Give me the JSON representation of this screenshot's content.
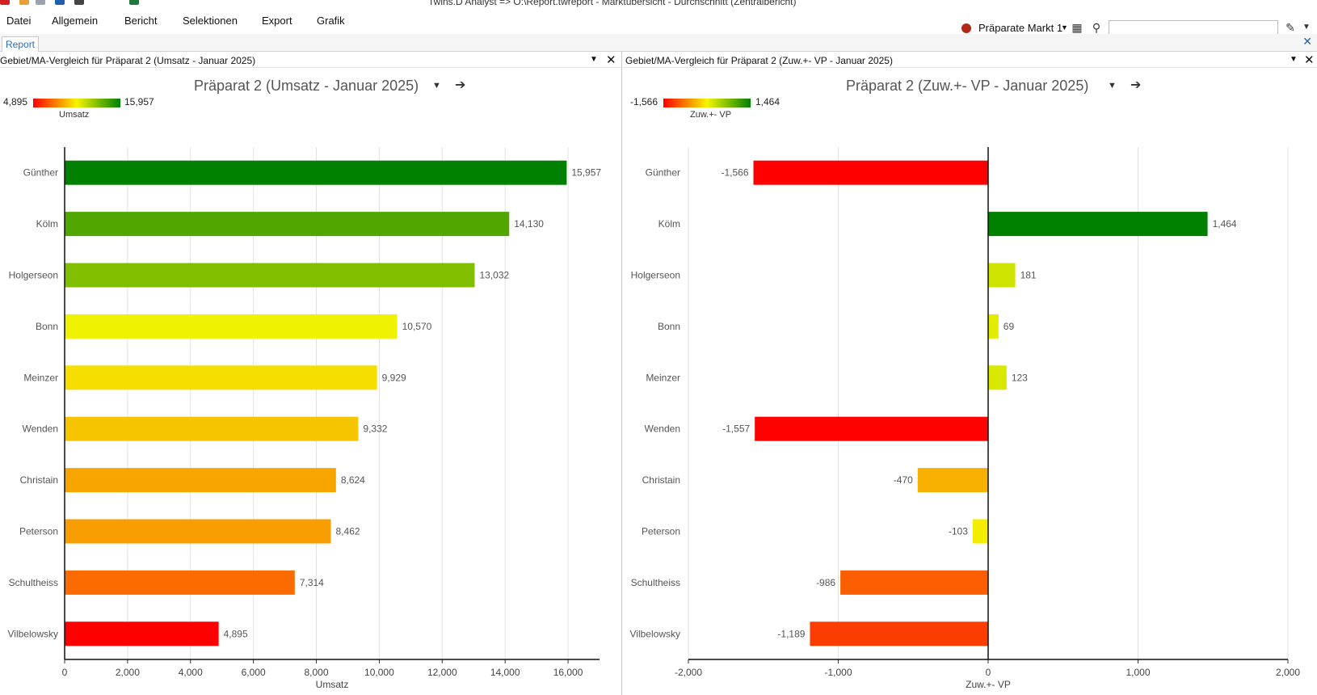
{
  "window": {
    "title": "Twins.D Analyst => O:\\Report.twreport - Marktübersicht - Durchschnitt (Zentralbericht)"
  },
  "menu": {
    "items": [
      "Datei",
      "Allgemein",
      "Bericht",
      "Selektionen",
      "Export",
      "Grafik"
    ],
    "market_label": "Präparate Markt 1",
    "search_value": ""
  },
  "tabs": [
    {
      "label": "Report",
      "active": true
    }
  ],
  "panels": [
    {
      "header": "Gebiet/MA-Vergleich für Präparat 2 (Umsatz - Januar 2025)",
      "legend": {
        "min": "4,895",
        "max": "15,957",
        "label": "Umsatz"
      }
    },
    {
      "header": "Gebiet/MA-Vergleich für Präparat 2 (Zuw.+- VP - Januar 2025)",
      "legend": {
        "min": "-1,566",
        "max": "1,464",
        "label": "Zuw.+- VP"
      }
    }
  ],
  "colors": {
    "scale_low": "#ff0000",
    "scale_mid": "#f5f500",
    "scale_high": "#008000",
    "grid": "#e2e2e2",
    "axis": "#333333"
  },
  "chart_data": [
    {
      "type": "bar",
      "orientation": "horizontal",
      "title": "Präparat 2 (Umsatz - Januar 2025)",
      "xlabel": "Umsatz",
      "ylabel": "",
      "categories": [
        "Günther",
        "Kölm",
        "Holgerseon",
        "Bonn",
        "Meinzer",
        "Wenden",
        "Christain",
        "Peterson",
        "Schultheiss",
        "Vilbelowsky"
      ],
      "values": [
        15957,
        14130,
        13032,
        10570,
        9929,
        9332,
        8624,
        8462,
        7314,
        4895
      ],
      "value_labels": [
        "15,957",
        "14,130",
        "13,032",
        "10,570",
        "9,929",
        "9,332",
        "8,624",
        "8,462",
        "7,314",
        "4,895"
      ],
      "xlim": [
        0,
        17000
      ],
      "xticks": [
        0,
        2000,
        4000,
        6000,
        8000,
        10000,
        12000,
        14000,
        16000
      ],
      "xtick_labels": [
        "0",
        "2,000",
        "4,000",
        "6,000",
        "8,000",
        "10,000",
        "12,000",
        "14,000",
        "16,000"
      ],
      "grid": true,
      "color_scale": [
        4895,
        15957
      ]
    },
    {
      "type": "bar",
      "orientation": "horizontal",
      "title": "Präparat 2 (Zuw.+- VP - Januar 2025)",
      "xlabel": "Zuw.+- VP",
      "ylabel": "",
      "categories": [
        "Günther",
        "Kölm",
        "Holgerseon",
        "Bonn",
        "Meinzer",
        "Wenden",
        "Christain",
        "Peterson",
        "Schultheiss",
        "Vilbelowsky"
      ],
      "values": [
        -1566,
        1464,
        181,
        69,
        123,
        -1557,
        -470,
        -103,
        -986,
        -1189
      ],
      "value_labels": [
        "-1,566",
        "1,464",
        "181",
        "69",
        "123",
        "-1,557",
        "-470",
        "-103",
        "-986",
        "-1,189"
      ],
      "xlim": [
        -2000,
        2000
      ],
      "xticks": [
        -2000,
        -1000,
        0,
        1000,
        2000
      ],
      "xtick_labels": [
        "-2,000",
        "-1,000",
        "0",
        "1,000",
        "2,000"
      ],
      "grid": true,
      "color_scale": [
        -1566,
        1464
      ]
    }
  ]
}
